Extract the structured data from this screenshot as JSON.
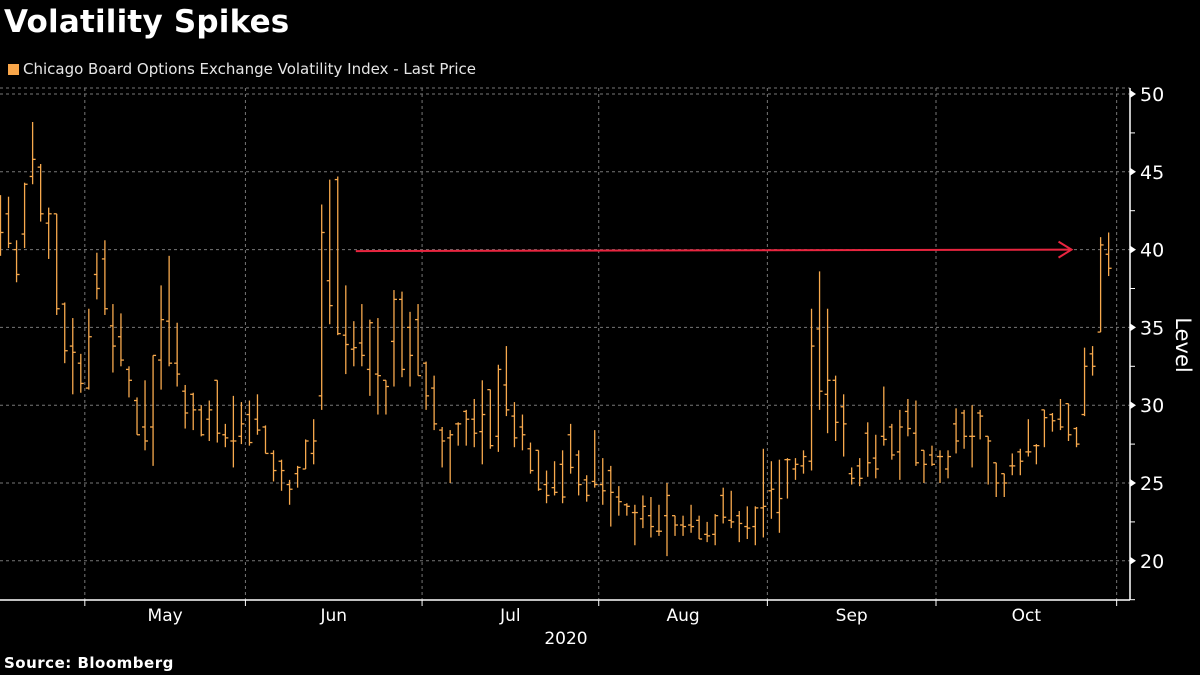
{
  "chart_data": {
    "type": "ohlc-bar",
    "title": "Volatility Spikes",
    "legend": [
      {
        "name": "Chicago Board Options Exchange Volatility Index - Last Price",
        "color": "#f9a64a"
      }
    ],
    "legend_placement": "top-left",
    "ylabel": "Level",
    "y_axis_side": "right",
    "ylim": [
      17.5,
      50.4
    ],
    "yticks": [
      20,
      25,
      30,
      35,
      40,
      45,
      50
    ],
    "xlabel": "2020",
    "xticks": [
      {
        "label": "May",
        "date": "2020-05-01"
      },
      {
        "label": "Jun",
        "date": "2020-06-01"
      },
      {
        "label": "Jul",
        "date": "2020-07-01"
      },
      {
        "label": "Aug",
        "date": "2020-08-03"
      },
      {
        "label": "Sep",
        "date": "2020-09-01"
      },
      {
        "label": "Oct",
        "date": "2020-10-01"
      }
    ],
    "x_end_tick": "2020-11-02",
    "grid": true,
    "bar_color": "#f7a94d",
    "annotation": {
      "type": "arrow",
      "level": 40,
      "from": "2020-06-18",
      "to": "2020-10-26",
      "color": "#e8253f"
    },
    "fields": [
      "date",
      "open",
      "high",
      "low",
      "close"
    ],
    "bars": [
      [
        "2020-04-16",
        42.0,
        43.5,
        39.6,
        41.1
      ],
      [
        "2020-04-17",
        42.3,
        43.4,
        40.1,
        40.4
      ],
      [
        "2020-04-20",
        40.0,
        40.6,
        37.9,
        38.4
      ],
      [
        "2020-04-21",
        41.0,
        44.3,
        40.1,
        44.2
      ],
      [
        "2020-04-22",
        44.7,
        48.2,
        44.2,
        45.8
      ],
      [
        "2020-04-23",
        45.3,
        45.5,
        41.8,
        42.3
      ],
      [
        "2020-04-24",
        41.7,
        42.7,
        39.4,
        42.3
      ],
      [
        "2020-04-27",
        42.3,
        42.3,
        35.8,
        36.2
      ],
      [
        "2020-04-28",
        36.5,
        36.6,
        32.7,
        33.5
      ],
      [
        "2020-04-29",
        33.8,
        35.6,
        30.7,
        33.4
      ],
      [
        "2020-04-30",
        32.7,
        33.3,
        30.8,
        31.4
      ],
      [
        "2020-05-01",
        31.1,
        36.2,
        31.0,
        34.4
      ],
      [
        "2020-05-04",
        38.4,
        39.8,
        36.8,
        37.5
      ],
      [
        "2020-05-05",
        39.4,
        40.6,
        35.8,
        36.2
      ],
      [
        "2020-05-06",
        35.1,
        36.5,
        32.1,
        33.8
      ],
      [
        "2020-05-07",
        34.4,
        35.9,
        32.5,
        32.9
      ],
      [
        "2020-05-08",
        32.3,
        32.5,
        30.5,
        31.6
      ],
      [
        "2020-05-11",
        30.3,
        30.5,
        28.1,
        28.1
      ],
      [
        "2020-05-12",
        28.6,
        31.6,
        27.1,
        27.7
      ],
      [
        "2020-05-13",
        28.6,
        33.2,
        26.1,
        33.2
      ],
      [
        "2020-05-14",
        32.9,
        37.7,
        31.0,
        35.5
      ],
      [
        "2020-05-15",
        35.4,
        39.6,
        32.5,
        32.7
      ],
      [
        "2020-05-18",
        32.7,
        35.3,
        31.2,
        32.0
      ],
      [
        "2020-05-19",
        30.9,
        31.3,
        28.5,
        29.5
      ],
      [
        "2020-05-20",
        30.7,
        30.8,
        28.4,
        29.7
      ],
      [
        "2020-05-21",
        29.7,
        30.0,
        28.0,
        28.1
      ],
      [
        "2020-05-22",
        29.1,
        30.3,
        27.7,
        29.7
      ],
      [
        "2020-05-26",
        31.6,
        31.6,
        27.6,
        28.2
      ],
      [
        "2020-05-27",
        28.1,
        28.8,
        27.3,
        27.9
      ],
      [
        "2020-05-28",
        27.7,
        30.6,
        26.0,
        27.7
      ],
      [
        "2020-05-29",
        28.0,
        30.2,
        27.5,
        28.8
      ],
      [
        "2020-06-01",
        29.4,
        30.3,
        27.4,
        27.6
      ],
      [
        "2020-06-02",
        29.1,
        30.7,
        28.1,
        28.4
      ],
      [
        "2020-06-03",
        28.6,
        28.7,
        26.9,
        26.9
      ],
      [
        "2020-06-04",
        26.9,
        27.1,
        25.1,
        25.8
      ],
      [
        "2020-06-05",
        26.4,
        26.5,
        24.5,
        25.8
      ],
      [
        "2020-06-08",
        24.9,
        25.2,
        23.6,
        24.6
      ],
      [
        "2020-06-09",
        25.6,
        26.1,
        24.7,
        26.0
      ],
      [
        "2020-06-10",
        25.9,
        27.8,
        25.9,
        27.7
      ],
      [
        "2020-06-11",
        26.9,
        29.1,
        26.2,
        27.7
      ],
      [
        "2020-06-12",
        30.6,
        42.9,
        29.7,
        41.1
      ],
      [
        "2020-06-15",
        38.0,
        44.5,
        35.2,
        36.4
      ],
      [
        "2020-06-16",
        44.5,
        44.7,
        34.5,
        34.6
      ],
      [
        "2020-06-17",
        34.5,
        37.7,
        32.0,
        33.9
      ],
      [
        "2020-06-18",
        33.6,
        35.4,
        32.5,
        33.7
      ],
      [
        "2020-06-19",
        34.0,
        36.5,
        32.5,
        33.2
      ],
      [
        "2020-06-22",
        32.3,
        35.5,
        30.6,
        35.3
      ],
      [
        "2020-06-23",
        32.0,
        35.6,
        29.4,
        31.9
      ],
      [
        "2020-06-24",
        31.6,
        31.6,
        29.4,
        31.2
      ],
      [
        "2020-06-25",
        34.1,
        37.4,
        31.2,
        36.8
      ],
      [
        "2020-06-26",
        36.8,
        37.3,
        31.8,
        32.3
      ],
      [
        "2020-06-29",
        35.0,
        36.0,
        31.2,
        33.2
      ],
      [
        "2020-06-30",
        35.5,
        36.5,
        31.9,
        31.9
      ],
      [
        "2020-07-01",
        32.7,
        32.8,
        29.7,
        30.6
      ],
      [
        "2020-07-02",
        31.1,
        31.9,
        28.4,
        28.8
      ],
      [
        "2020-07-06",
        28.4,
        28.6,
        26.0,
        27.7
      ],
      [
        "2020-07-07",
        27.9,
        28.4,
        25.0,
        28.1
      ],
      [
        "2020-07-08",
        28.8,
        28.9,
        27.4,
        28.8
      ],
      [
        "2020-07-09",
        29.6,
        29.7,
        27.4,
        29.1
      ],
      [
        "2020-07-10",
        29.1,
        30.4,
        27.3,
        28.2
      ],
      [
        "2020-07-13",
        28.3,
        31.6,
        26.2,
        29.4
      ],
      [
        "2020-07-14",
        31.0,
        31.0,
        27.2,
        27.4
      ],
      [
        "2020-07-15",
        28.0,
        32.6,
        27.0,
        32.3
      ],
      [
        "2020-07-16",
        31.3,
        33.8,
        29.3,
        29.7
      ],
      [
        "2020-07-17",
        29.3,
        30.2,
        27.3,
        27.9
      ],
      [
        "2020-07-20",
        28.6,
        29.4,
        27.1,
        28.1
      ],
      [
        "2020-07-21",
        27.2,
        27.6,
        25.6,
        25.8
      ],
      [
        "2020-07-22",
        27.1,
        27.1,
        24.5,
        24.6
      ],
      [
        "2020-07-23",
        24.9,
        25.8,
        23.7,
        24.2
      ],
      [
        "2020-07-24",
        24.7,
        26.4,
        24.2,
        24.4
      ],
      [
        "2020-07-27",
        26.2,
        27.1,
        23.7,
        24.1
      ],
      [
        "2020-07-28",
        28.1,
        28.8,
        25.6,
        26.0
      ],
      [
        "2020-07-29",
        26.8,
        27.1,
        24.2,
        24.9
      ],
      [
        "2020-07-30",
        25.2,
        25.5,
        23.8,
        24.2
      ],
      [
        "2020-07-31",
        25.1,
        28.4,
        24.7,
        24.9
      ],
      [
        "2020-08-03",
        24.9,
        26.6,
        23.6,
        24.5
      ],
      [
        "2020-08-04",
        25.8,
        26.1,
        22.2,
        24.4
      ],
      [
        "2020-08-05",
        24.1,
        24.8,
        22.9,
        23.8
      ],
      [
        "2020-08-06",
        23.6,
        23.7,
        22.9,
        23.5
      ],
      [
        "2020-08-07",
        23.1,
        23.6,
        21.0,
        23.1
      ],
      [
        "2020-08-10",
        22.7,
        24.2,
        22.1,
        23.5
      ],
      [
        "2020-08-11",
        22.9,
        24.1,
        21.5,
        22.2
      ],
      [
        "2020-08-12",
        21.9,
        23.6,
        21.6,
        21.9
      ],
      [
        "2020-08-13",
        22.9,
        25.0,
        20.3,
        24.2
      ],
      [
        "2020-08-14",
        22.9,
        22.9,
        21.6,
        22.3
      ],
      [
        "2020-08-17",
        22.3,
        22.9,
        21.6,
        22.2
      ],
      [
        "2020-08-18",
        22.3,
        23.6,
        21.8,
        22.2
      ],
      [
        "2020-08-19",
        22.6,
        22.9,
        21.4,
        21.4
      ],
      [
        "2020-08-20",
        21.7,
        22.5,
        21.2,
        21.6
      ],
      [
        "2020-08-21",
        21.7,
        23.0,
        21.0,
        22.9
      ],
      [
        "2020-08-24",
        24.2,
        24.7,
        22.4,
        22.8
      ],
      [
        "2020-08-25",
        22.6,
        24.5,
        22.1,
        22.5
      ],
      [
        "2020-08-26",
        22.9,
        23.2,
        21.2,
        22.4
      ],
      [
        "2020-08-27",
        22.2,
        23.5,
        21.4,
        22.1
      ],
      [
        "2020-08-28",
        22.2,
        23.5,
        21.0,
        23.4
      ],
      [
        "2020-08-31",
        23.4,
        27.2,
        21.5,
        23.5
      ],
      [
        "2020-09-01",
        24.5,
        26.4,
        22.7,
        24.6
      ],
      [
        "2020-09-02",
        23.1,
        26.5,
        21.8,
        24.0
      ],
      [
        "2020-09-03",
        26.5,
        26.6,
        24.0,
        26.5
      ],
      [
        "2020-09-04",
        25.9,
        26.6,
        25.2,
        26.2
      ],
      [
        "2020-09-08",
        26.1,
        27.1,
        25.6,
        26.7
      ],
      [
        "2020-09-09",
        26.4,
        36.2,
        25.8,
        33.8
      ],
      [
        "2020-09-10",
        34.9,
        38.6,
        29.7,
        30.9
      ],
      [
        "2020-09-11",
        30.7,
        36.2,
        28.2,
        31.6
      ],
      [
        "2020-09-14",
        31.6,
        31.9,
        27.7,
        28.9
      ],
      [
        "2020-09-15",
        29.9,
        30.7,
        26.7,
        28.8
      ],
      [
        "2020-09-16",
        25.6,
        26.0,
        24.9,
        25.3
      ],
      [
        "2020-09-17",
        26.1,
        26.6,
        24.8,
        25.3
      ],
      [
        "2020-09-18",
        28.2,
        28.9,
        25.4,
        26.3
      ],
      [
        "2020-09-21",
        26.6,
        28.1,
        25.3,
        25.9
      ],
      [
        "2020-09-22",
        28.0,
        31.2,
        27.4,
        27.8
      ],
      [
        "2020-09-23",
        28.6,
        28.8,
        26.5,
        26.8
      ],
      [
        "2020-09-24",
        27.0,
        29.7,
        25.2,
        28.6
      ],
      [
        "2020-09-25",
        29.6,
        30.4,
        28.0,
        28.5
      ],
      [
        "2020-09-28",
        28.2,
        30.3,
        26.1,
        26.3
      ],
      [
        "2020-09-29",
        27.1,
        27.1,
        25.0,
        26.2
      ],
      [
        "2020-09-30",
        26.8,
        27.4,
        26.1,
        26.2
      ],
      [
        "2020-10-01",
        26.7,
        27.1,
        25.0,
        26.7
      ],
      [
        "2020-10-02",
        25.9,
        27.1,
        25.3,
        26.7
      ],
      [
        "2020-10-05",
        28.8,
        29.8,
        26.9,
        27.7
      ],
      [
        "2020-10-06",
        29.5,
        29.7,
        27.2,
        28.0
      ],
      [
        "2020-10-07",
        28.0,
        30.0,
        26.0,
        28.0
      ],
      [
        "2020-10-08",
        29.5,
        29.7,
        27.8,
        29.3
      ],
      [
        "2020-10-09",
        28.0,
        28.0,
        24.9,
        27.7
      ],
      [
        "2020-10-12",
        26.3,
        26.3,
        24.1,
        25.0
      ],
      [
        "2020-10-13",
        25.6,
        25.6,
        24.1,
        25.0
      ],
      [
        "2020-10-14",
        26.1,
        26.9,
        25.5,
        26.1
      ],
      [
        "2020-10-15",
        27.0,
        27.2,
        25.5,
        26.4
      ],
      [
        "2020-10-16",
        27.0,
        29.1,
        26.7,
        27.0
      ],
      [
        "2020-10-19",
        27.4,
        27.5,
        26.2,
        27.4
      ],
      [
        "2020-10-20",
        29.7,
        29.7,
        27.3,
        29.2
      ],
      [
        "2020-10-21",
        29.4,
        29.5,
        28.3,
        29.0
      ],
      [
        "2020-10-22",
        29.1,
        30.4,
        28.4,
        28.6
      ],
      [
        "2020-10-23",
        30.1,
        30.1,
        27.7,
        28.1
      ],
      [
        "2020-10-26",
        28.5,
        28.6,
        27.3,
        27.5
      ],
      [
        "2020-10-27",
        29.4,
        33.7,
        29.3,
        32.5
      ],
      [
        "2020-10-28",
        33.3,
        33.8,
        31.9,
        32.5
      ],
      [
        "2020-10-29",
        34.7,
        40.8,
        34.7,
        40.3
      ],
      [
        "2020-10-30",
        39.7,
        41.1,
        38.3,
        38.8
      ]
    ]
  },
  "source": "Source: Bloomberg"
}
